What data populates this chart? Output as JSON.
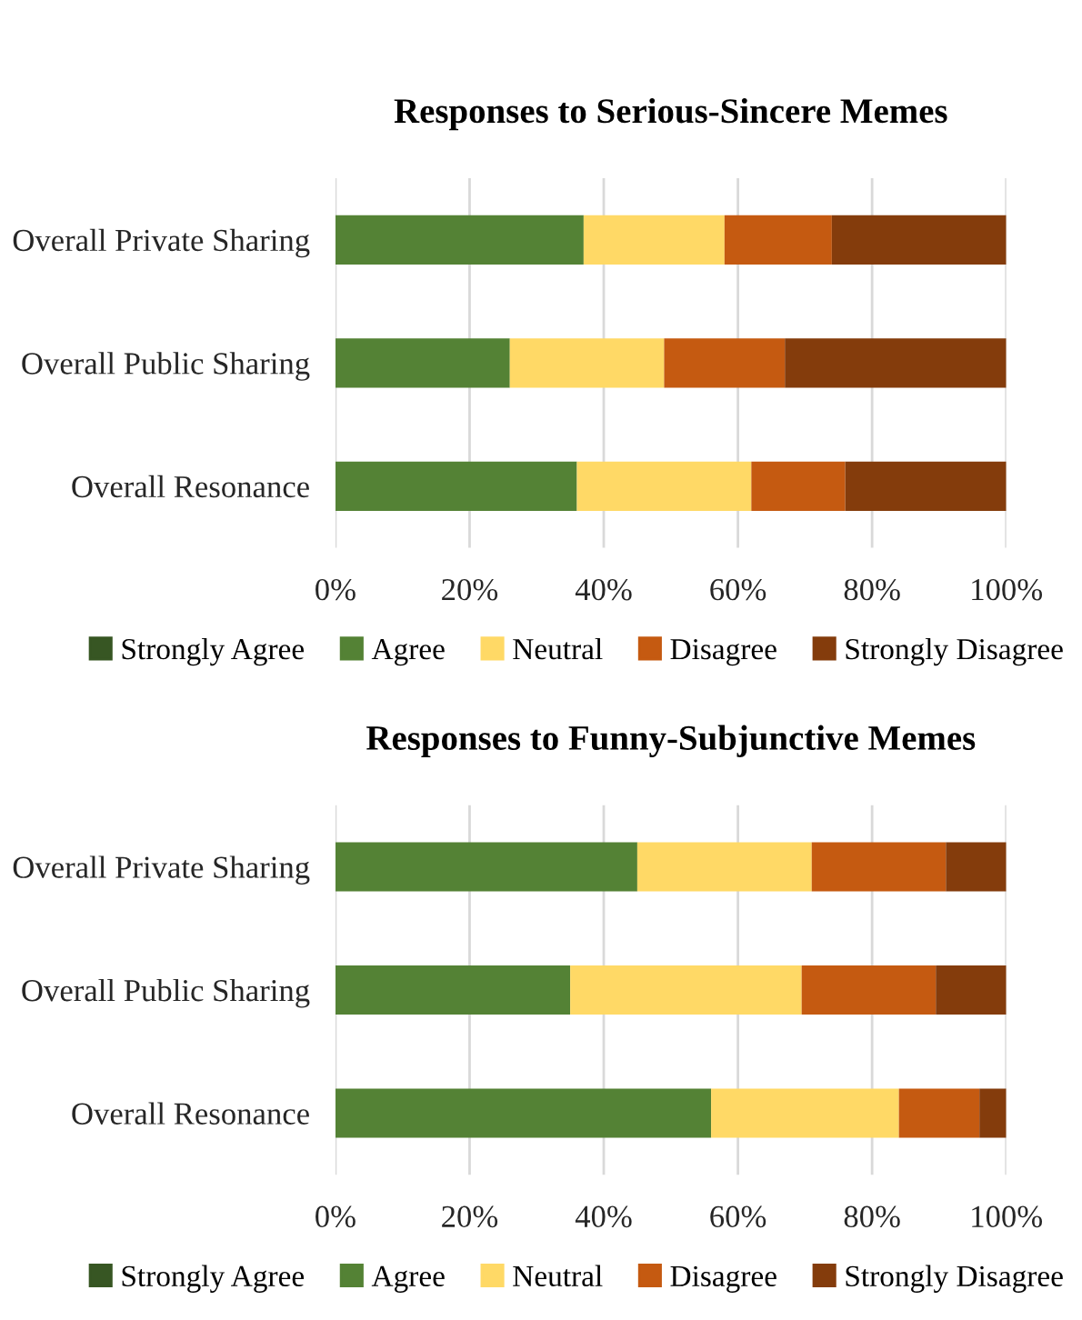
{
  "chart_data": [
    {
      "type": "bar",
      "title": "Responses to Serious-Sincere Memes",
      "orientation": "horizontal",
      "stacked": true,
      "categories": [
        "Overall Private Sharing",
        "Overall Public Sharing",
        "Overall Resonance"
      ],
      "series": [
        {
          "name": "Strongly Agree",
          "color": "#375623",
          "values": [
            0,
            0,
            0
          ]
        },
        {
          "name": "Agree",
          "color": "#548235",
          "values": [
            37,
            26,
            36
          ]
        },
        {
          "name": "Neutral",
          "color": "#ffd966",
          "values": [
            21,
            23,
            26
          ]
        },
        {
          "name": "Disagree",
          "color": "#c55a11",
          "values": [
            16,
            18,
            14
          ]
        },
        {
          "name": "Strongly Disagree",
          "color": "#843c0c",
          "values": [
            26,
            33,
            24
          ]
        }
      ],
      "xlim": [
        0,
        100
      ],
      "xticks": [
        {
          "value": 0,
          "label": "0%"
        },
        {
          "value": 20,
          "label": "20%"
        },
        {
          "value": 40,
          "label": "40%"
        },
        {
          "value": 60,
          "label": "60%"
        },
        {
          "value": 80,
          "label": "80%"
        },
        {
          "value": 100,
          "label": "100%"
        }
      ],
      "grid": "x",
      "legend": "bottom"
    },
    {
      "type": "bar",
      "title": "Responses to Funny-Subjunctive Memes",
      "orientation": "horizontal",
      "stacked": true,
      "categories": [
        "Overall Private Sharing",
        "Overall Public Sharing",
        "Overall Resonance"
      ],
      "series": [
        {
          "name": "Strongly Agree",
          "color": "#375623",
          "values": [
            0,
            0,
            0
          ]
        },
        {
          "name": "Agree",
          "color": "#548235",
          "values": [
            45,
            35,
            56
          ]
        },
        {
          "name": "Neutral",
          "color": "#ffd966",
          "values": [
            26,
            34.5,
            28
          ]
        },
        {
          "name": "Disagree",
          "color": "#c55a11",
          "values": [
            20,
            20,
            12
          ]
        },
        {
          "name": "Strongly Disagree",
          "color": "#843c0c",
          "values": [
            9,
            10.5,
            4
          ]
        }
      ],
      "xlim": [
        0,
        100
      ],
      "xticks": [
        {
          "value": 0,
          "label": "0%"
        },
        {
          "value": 20,
          "label": "20%"
        },
        {
          "value": 40,
          "label": "40%"
        },
        {
          "value": 60,
          "label": "60%"
        },
        {
          "value": 80,
          "label": "80%"
        },
        {
          "value": 100,
          "label": "100%"
        }
      ],
      "grid": "x",
      "legend": "bottom"
    }
  ]
}
